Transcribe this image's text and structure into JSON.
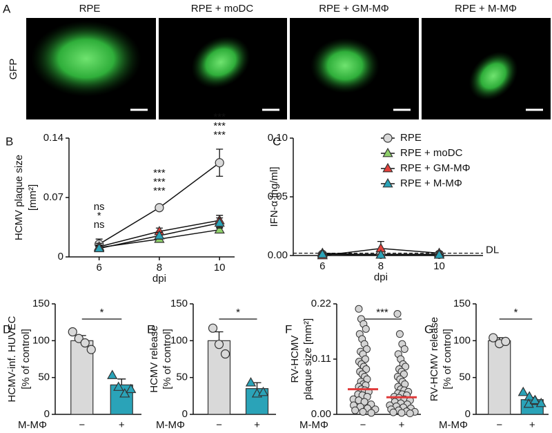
{
  "panel_a": {
    "letter": "A",
    "row_label": "GFP",
    "columns": [
      "RPE",
      "RPE + moDC",
      "RPE + GM-MΦ",
      "RPE + M-MΦ"
    ]
  },
  "chart_data": [
    {
      "type": "line",
      "letter": "B",
      "ylabel": [
        "HCMV plaque size",
        "[mm²]"
      ],
      "xlabel": "dpi",
      "x": [
        6,
        8,
        10
      ],
      "xlim": [
        5,
        10.5
      ],
      "xticks": [
        6,
        8,
        10
      ],
      "ylim": [
        0,
        0.14
      ],
      "yticks": [
        0,
        0.07,
        0.14
      ],
      "legend": "upper right",
      "series": [
        {
          "name": "RPE",
          "color": "#d9d9d9",
          "marker": "circle",
          "values": [
            0.015,
            0.058,
            0.111
          ],
          "errors": [
            0.006,
            0.003,
            0.016
          ]
        },
        {
          "name": "RPE + moDC",
          "color": "#8fd06a",
          "marker": "triangle",
          "values": [
            0.011,
            0.021,
            0.032
          ],
          "errors": [
            0.003,
            0.003,
            0.003
          ]
        },
        {
          "name": "RPE + GM-MΦ",
          "color": "#e2403a",
          "marker": "triangle",
          "values": [
            0.012,
            0.03,
            0.043
          ],
          "errors": [
            0.004,
            0.004,
            0.006
          ]
        },
        {
          "name": "RPE + M-MΦ",
          "color": "#2aa3b8",
          "marker": "triangle",
          "values": [
            0.01,
            0.025,
            0.04
          ],
          "errors": [
            0.003,
            0.004,
            0.006
          ]
        }
      ],
      "annotations": [
        {
          "x": 6,
          "labels": [
            {
              "text": "ns",
              "color": "#3aaa4a"
            },
            {
              "text": "*",
              "color": "#e0342f"
            },
            {
              "text": "ns",
              "color": "#2c7fb8"
            }
          ]
        },
        {
          "x": 8,
          "labels": [
            {
              "text": "***",
              "color": "#3aaa4a"
            },
            {
              "text": "***",
              "color": "#e0342f"
            },
            {
              "text": "***",
              "color": "#2c7fb8"
            }
          ]
        },
        {
          "x": 10,
          "labels": [
            {
              "text": "***",
              "color": "#3aaa4a"
            },
            {
              "text": "***",
              "color": "#e0342f"
            },
            {
              "text": "***",
              "color": "#2c7fb8"
            }
          ]
        }
      ]
    },
    {
      "type": "line",
      "letter": "C",
      "ylabel": [
        "IFN-α [ng/ml]"
      ],
      "xlabel": "dpi",
      "x": [
        6,
        8,
        10
      ],
      "xlim": [
        5,
        11.5
      ],
      "xticks": [
        6,
        8,
        10
      ],
      "ylim": [
        0,
        0.1
      ],
      "yticks": [
        {
          "value": 0,
          "label": "0.00"
        },
        0.05,
        {
          "value": 0.1,
          "label": "0.10"
        }
      ],
      "detection_limit": {
        "value": 0.002,
        "label": "DL"
      },
      "series": [
        {
          "color": "#d9d9d9",
          "marker": "circle",
          "values": [
            0.001,
            0.001,
            0.001
          ],
          "errors": [
            0.0005,
            0.0005,
            0.0005
          ]
        },
        {
          "color": "#8fd06a",
          "marker": "triangle",
          "values": [
            0.002,
            0.0005,
            0.001
          ],
          "errors": [
            0.0005,
            0.0005,
            0.0005
          ]
        },
        {
          "color": "#e2403a",
          "marker": "triangle",
          "values": [
            0,
            0.006,
            0.002
          ],
          "errors": [
            0.001,
            0.006,
            0.001
          ]
        },
        {
          "color": "#2aa3b8",
          "marker": "triangle",
          "values": [
            0.001,
            0.0005,
            0.0005
          ],
          "errors": [
            0.0005,
            0.0005,
            0.0005
          ]
        }
      ]
    },
    {
      "type": "bar",
      "letter": "D",
      "ylabel": [
        "HCMV-inf. HUVEC",
        "[% of control]"
      ],
      "xlabel": "M-MΦ",
      "categories": [
        "−",
        "+"
      ],
      "values": [
        100,
        40
      ],
      "errors": [
        7,
        8
      ],
      "points": [
        [
          112,
          103,
          97,
          88
        ],
        [
          53,
          37,
          28,
          34
        ]
      ],
      "colors": [
        "#d9d9d9",
        "#2aa3b8"
      ],
      "markers": [
        "circle",
        "triangle"
      ],
      "ylim": [
        0,
        150
      ],
      "yticks": [
        0,
        50,
        100,
        150
      ],
      "significance": "*"
    },
    {
      "type": "bar",
      "letter": "E",
      "ylabel": [
        "HCMV release",
        "[% of control]"
      ],
      "xlabel": "M-MΦ",
      "categories": [
        "−",
        "+"
      ],
      "values": [
        100,
        35
      ],
      "errors": [
        12,
        8
      ],
      "points": [
        [
          117,
          95,
          82
        ],
        [
          43,
          28,
          30
        ]
      ],
      "colors": [
        "#d9d9d9",
        "#2aa3b8"
      ],
      "markers": [
        "circle",
        "triangle"
      ],
      "ylim": [
        0,
        150
      ],
      "yticks": [
        0,
        50,
        100,
        150
      ],
      "significance": "*"
    },
    {
      "type": "strip",
      "letter": "F",
      "ylabel": [
        "RV-HCMV",
        "plaque size [mm²]"
      ],
      "xlabel": "M-MΦ",
      "categories": [
        "−",
        "+"
      ],
      "values": [
        0.05,
        0.034
      ],
      "median_color": "#e03a3a",
      "points": [
        [
          0.21,
          0.19,
          0.18,
          0.17,
          0.16,
          0.15,
          0.14,
          0.13,
          0.125,
          0.12,
          0.11,
          0.105,
          0.1,
          0.095,
          0.09,
          0.085,
          0.08,
          0.075,
          0.07,
          0.065,
          0.06,
          0.058,
          0.055,
          0.05,
          0.048,
          0.045,
          0.04,
          0.038,
          0.035,
          0.03,
          0.028,
          0.025,
          0.02,
          0.018,
          0.015,
          0.012,
          0.01,
          0.008,
          0.005,
          0.003
        ],
        [
          0.2,
          0.16,
          0.14,
          0.13,
          0.12,
          0.11,
          0.1,
          0.095,
          0.09,
          0.085,
          0.08,
          0.075,
          0.07,
          0.065,
          0.06,
          0.055,
          0.05,
          0.048,
          0.045,
          0.042,
          0.04,
          0.038,
          0.035,
          0.033,
          0.03,
          0.028,
          0.025,
          0.022,
          0.02,
          0.018,
          0.016,
          0.014,
          0.012,
          0.01,
          0.008,
          0.006,
          0.005,
          0.004,
          0.003,
          0.002
        ]
      ],
      "ylim": [
        0,
        0.22
      ],
      "yticks": [
        {
          "value": 0,
          "label": "0.00"
        },
        0.11,
        0.22
      ],
      "significance": "***"
    },
    {
      "type": "bar",
      "letter": "G",
      "ylabel": [
        "RV-HCMV release",
        "[% of control]"
      ],
      "xlabel": "M-MΦ",
      "categories": [
        "−",
        "+"
      ],
      "values": [
        100,
        20
      ],
      "errors": [
        4,
        3
      ],
      "points": [
        [
          104,
          96,
          99
        ],
        [
          30,
          24,
          18,
          14,
          19,
          15
        ]
      ],
      "colors": [
        "#d9d9d9",
        "#2aa3b8"
      ],
      "markers": [
        "circle",
        "triangle"
      ],
      "ylim": [
        0,
        150
      ],
      "yticks": [
        0,
        50,
        100,
        150
      ],
      "significance": "*"
    }
  ]
}
